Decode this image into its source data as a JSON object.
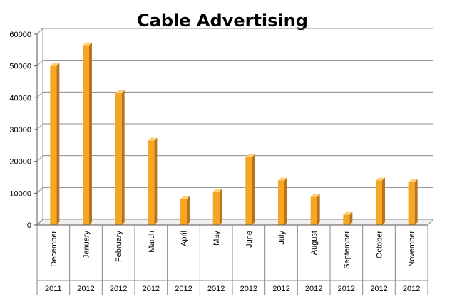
{
  "chart_data": {
    "type": "bar",
    "title": "Cable Advertising",
    "xlabel": "",
    "ylabel": "",
    "ylim": [
      0,
      60000
    ],
    "yticks": [
      "0",
      "10000",
      "20000",
      "30000",
      "40000",
      "50000",
      "60000"
    ],
    "grid": true,
    "legend": "none",
    "categories": [
      "December",
      "January",
      "February",
      "March",
      "April",
      "May",
      "June",
      "July",
      "August",
      "September",
      "October",
      "November"
    ],
    "years": [
      "2011",
      "2012",
      "2012",
      "2012",
      "2012",
      "2012",
      "2012",
      "2012",
      "2012",
      "2012",
      "2012",
      "2012"
    ],
    "values": [
      50000,
      56500,
      41500,
      26500,
      8200,
      10500,
      21300,
      14000,
      8800,
      3200,
      14000,
      13500
    ],
    "colors": {
      "bar": "#F5A623",
      "bar_side": "#B8741A",
      "bar_top": "#FFD27A",
      "grid": "#8c8c8c"
    }
  }
}
